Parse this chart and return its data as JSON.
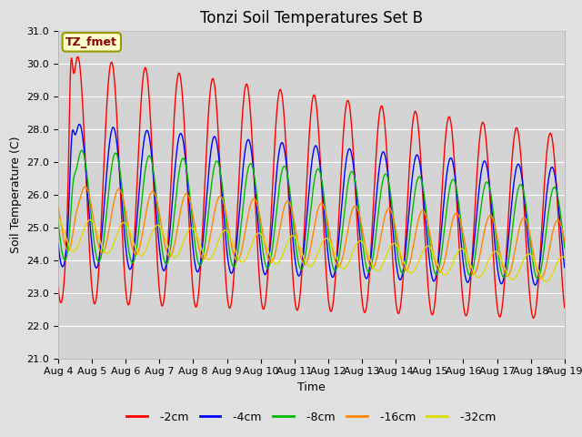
{
  "title": "Tonzi Soil Temperatures Set B",
  "xlabel": "Time",
  "ylabel": "Soil Temperature (C)",
  "ylim": [
    21.0,
    31.0
  ],
  "yticks": [
    21.0,
    22.0,
    23.0,
    24.0,
    25.0,
    26.0,
    27.0,
    28.0,
    29.0,
    30.0,
    31.0
  ],
  "colors": {
    "-2cm": "#ff0000",
    "-4cm": "#0000ff",
    "-8cm": "#00bb00",
    "-16cm": "#ff8800",
    "-32cm": "#dddd00"
  },
  "legend_label_box": "TZ_fmet",
  "legend_box_facecolor": "#ffffcc",
  "legend_box_edgecolor": "#999900",
  "background_color": "#e0e0e0",
  "plot_bg_color": "#d4d4d4",
  "grid_color": "#ffffff",
  "title_fontsize": 12,
  "axis_fontsize": 9,
  "tick_fontsize": 8
}
